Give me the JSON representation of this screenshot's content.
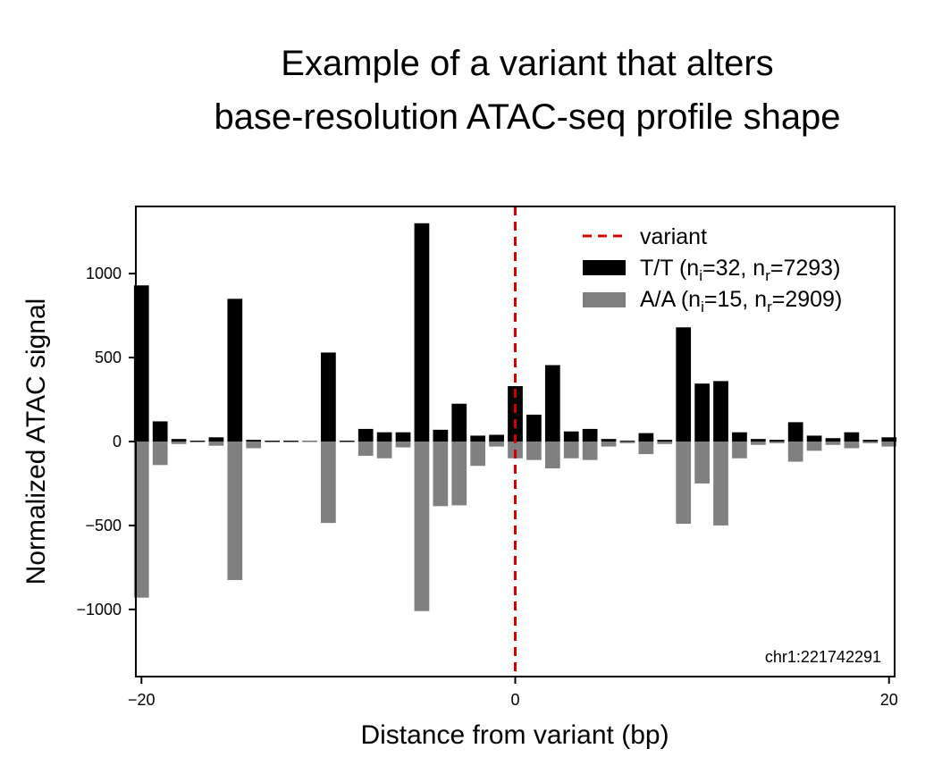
{
  "chart_data": {
    "type": "bar",
    "title_lines": [
      "Example of a variant that alters",
      "base-resolution ATAC-seq profile shape"
    ],
    "xlabel": "Distance from variant (bp)",
    "ylabel": "Normalized ATAC signal",
    "xlim": [
      -20.3,
      20.3
    ],
    "ylim": [
      -1400,
      1400
    ],
    "xticks": [
      -20,
      0,
      20
    ],
    "xtick_labels": [
      "−20",
      "0",
      "20"
    ],
    "yticks": [
      -1000,
      -500,
      0,
      500,
      1000
    ],
    "ytick_labels": [
      "−1000",
      "−500",
      "0",
      "500",
      "1000"
    ],
    "grid": false,
    "legend_position": "top-right",
    "variant_line": {
      "x": 0,
      "label": "variant",
      "color": "#d40000",
      "style": "dashed"
    },
    "annotation": "chr1:221742291",
    "x": [
      -20,
      -19,
      -18,
      -17,
      -16,
      -15,
      -14,
      -13,
      -12,
      -11,
      -10,
      -9,
      -8,
      -7,
      -6,
      -5,
      -4,
      -3,
      -2,
      -1,
      0,
      1,
      2,
      3,
      4,
      5,
      6,
      7,
      8,
      9,
      10,
      11,
      12,
      13,
      14,
      15,
      16,
      17,
      18,
      19,
      20
    ],
    "series": [
      {
        "name": "T/T",
        "legend": {
          "prefix": "T/T (n",
          "sub1": "i",
          "mid": "=32, n",
          "sub2": "r",
          "suffix": "=7293)"
        },
        "color": "#000000",
        "values": [
          930,
          120,
          15,
          5,
          25,
          850,
          10,
          5,
          5,
          3,
          530,
          5,
          75,
          55,
          55,
          1300,
          70,
          225,
          35,
          40,
          330,
          160,
          455,
          60,
          75,
          15,
          5,
          50,
          10,
          680,
          345,
          360,
          55,
          15,
          10,
          115,
          35,
          20,
          55,
          10,
          25
        ]
      },
      {
        "name": "A/A",
        "legend": {
          "prefix": "A/A (n",
          "sub1": "i",
          "mid": "=15, n",
          "sub2": "r",
          "suffix": "=2909)"
        },
        "color": "#808080",
        "values": [
          -930,
          -140,
          -15,
          -5,
          -25,
          -825,
          -40,
          -5,
          -5,
          -3,
          -485,
          -5,
          -85,
          -100,
          -35,
          -1010,
          -385,
          -380,
          -145,
          -30,
          -100,
          -110,
          -160,
          -100,
          -110,
          -30,
          -10,
          -75,
          -15,
          -490,
          -250,
          -500,
          -100,
          -20,
          -10,
          -120,
          -55,
          -20,
          -40,
          -10,
          -30
        ]
      }
    ]
  }
}
